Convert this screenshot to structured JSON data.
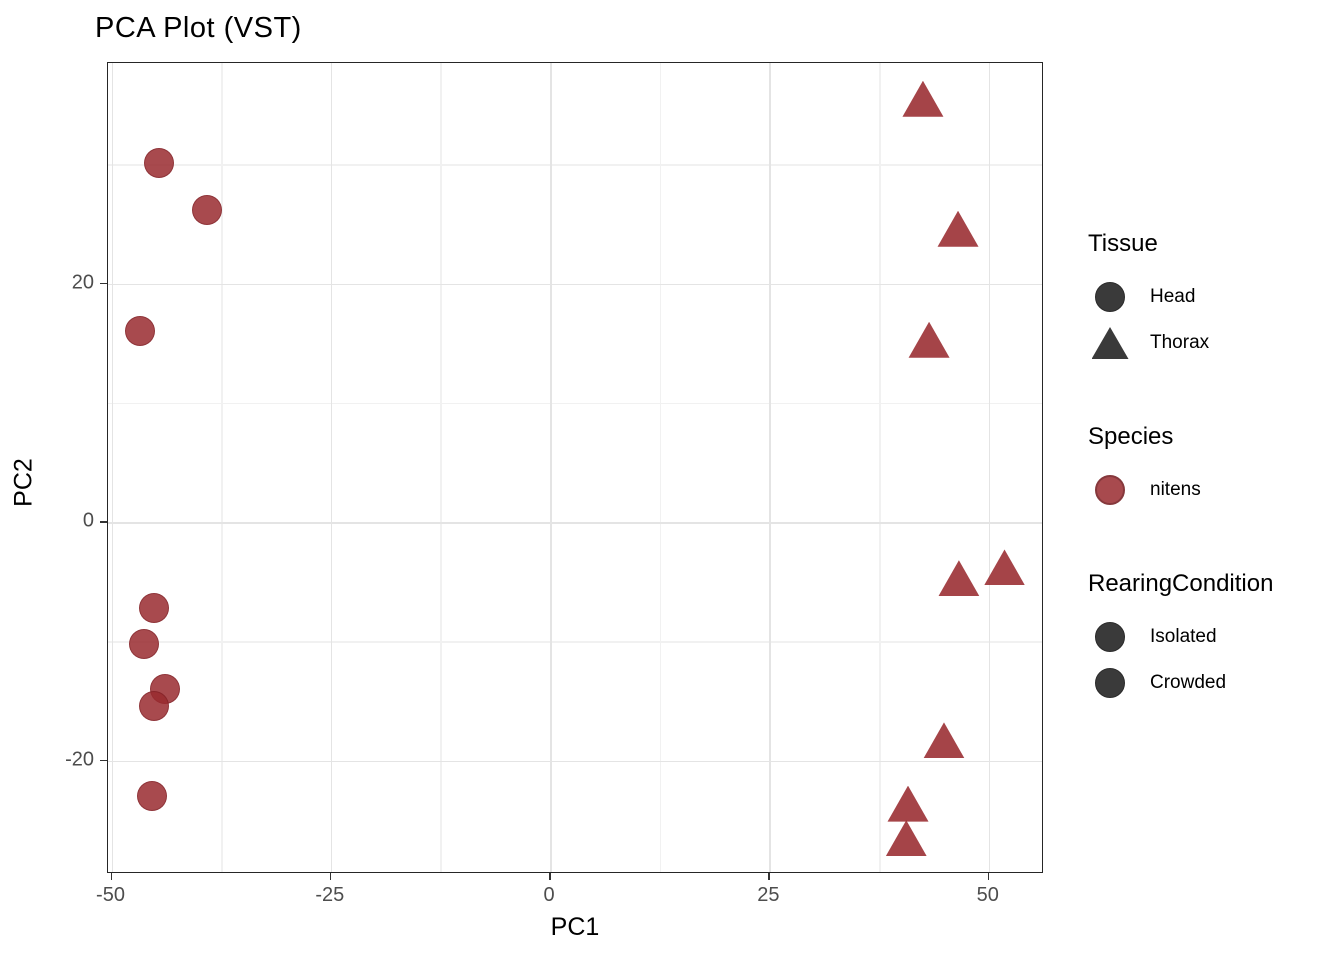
{
  "title": "PCA Plot (VST)",
  "axis": {
    "x_label": "PC1",
    "y_label": "PC2"
  },
  "legend": {
    "tissue_title": "Tissue",
    "tissue_items": [
      {
        "label": "Head",
        "shape": "circle"
      },
      {
        "label": "Thorax",
        "shape": "triangle"
      }
    ],
    "species_title": "Species",
    "species_items": [
      {
        "label": "nitens",
        "shape": "circle"
      }
    ],
    "rearing_title": "RearingCondition",
    "rearing_items": [
      {
        "label": "Isolated",
        "shape": "circle"
      },
      {
        "label": "Crowded",
        "shape": "circle"
      }
    ]
  },
  "colors": {
    "point_red": "#a84a4e",
    "point_red_stroke": "#86383c",
    "legend_dark": "#3a3a3a",
    "grid_major": "#e4e4e4",
    "grid_minor": "#f1f1f1",
    "panel_border": "#262626",
    "tick_text": "#4d4d4d"
  },
  "chart_data": {
    "type": "scatter",
    "title": "PCA Plot (VST)",
    "xlabel": "PC1",
    "ylabel": "PC2",
    "x_domain": [
      -50.4,
      56.3
    ],
    "y_domain": [
      -29.5,
      38.5
    ],
    "x_ticks": [
      -50,
      -25,
      0,
      25,
      50
    ],
    "y_ticks": [
      20,
      0,
      -20
    ],
    "x_minor_gridlines": [
      -37.5,
      -12.5,
      12.5,
      37.5
    ],
    "y_minor_gridlines": [
      30,
      10,
      -10
    ],
    "grid": true,
    "legend_position": "right",
    "series": [
      {
        "name": "Head",
        "tissue": "Head",
        "species": "nitens",
        "shape": "circle",
        "points": [
          [
            -44.6,
            30.1
          ],
          [
            -39.1,
            26.2
          ],
          [
            -46.8,
            16.0
          ],
          [
            -45.2,
            -7.2
          ],
          [
            -46.3,
            -10.2
          ],
          [
            -43.9,
            -14.0
          ],
          [
            -45.2,
            -15.4
          ],
          [
            -45.4,
            -23.0
          ]
        ]
      },
      {
        "name": "Thorax",
        "tissue": "Thorax",
        "species": "nitens",
        "shape": "triangle",
        "points": [
          [
            42.5,
            35.5
          ],
          [
            46.5,
            24.6
          ],
          [
            43.2,
            15.3
          ],
          [
            46.6,
            -4.7
          ],
          [
            51.8,
            -3.8
          ],
          [
            44.9,
            -18.3
          ],
          [
            40.8,
            -23.6
          ],
          [
            40.6,
            -26.5
          ]
        ]
      }
    ]
  }
}
